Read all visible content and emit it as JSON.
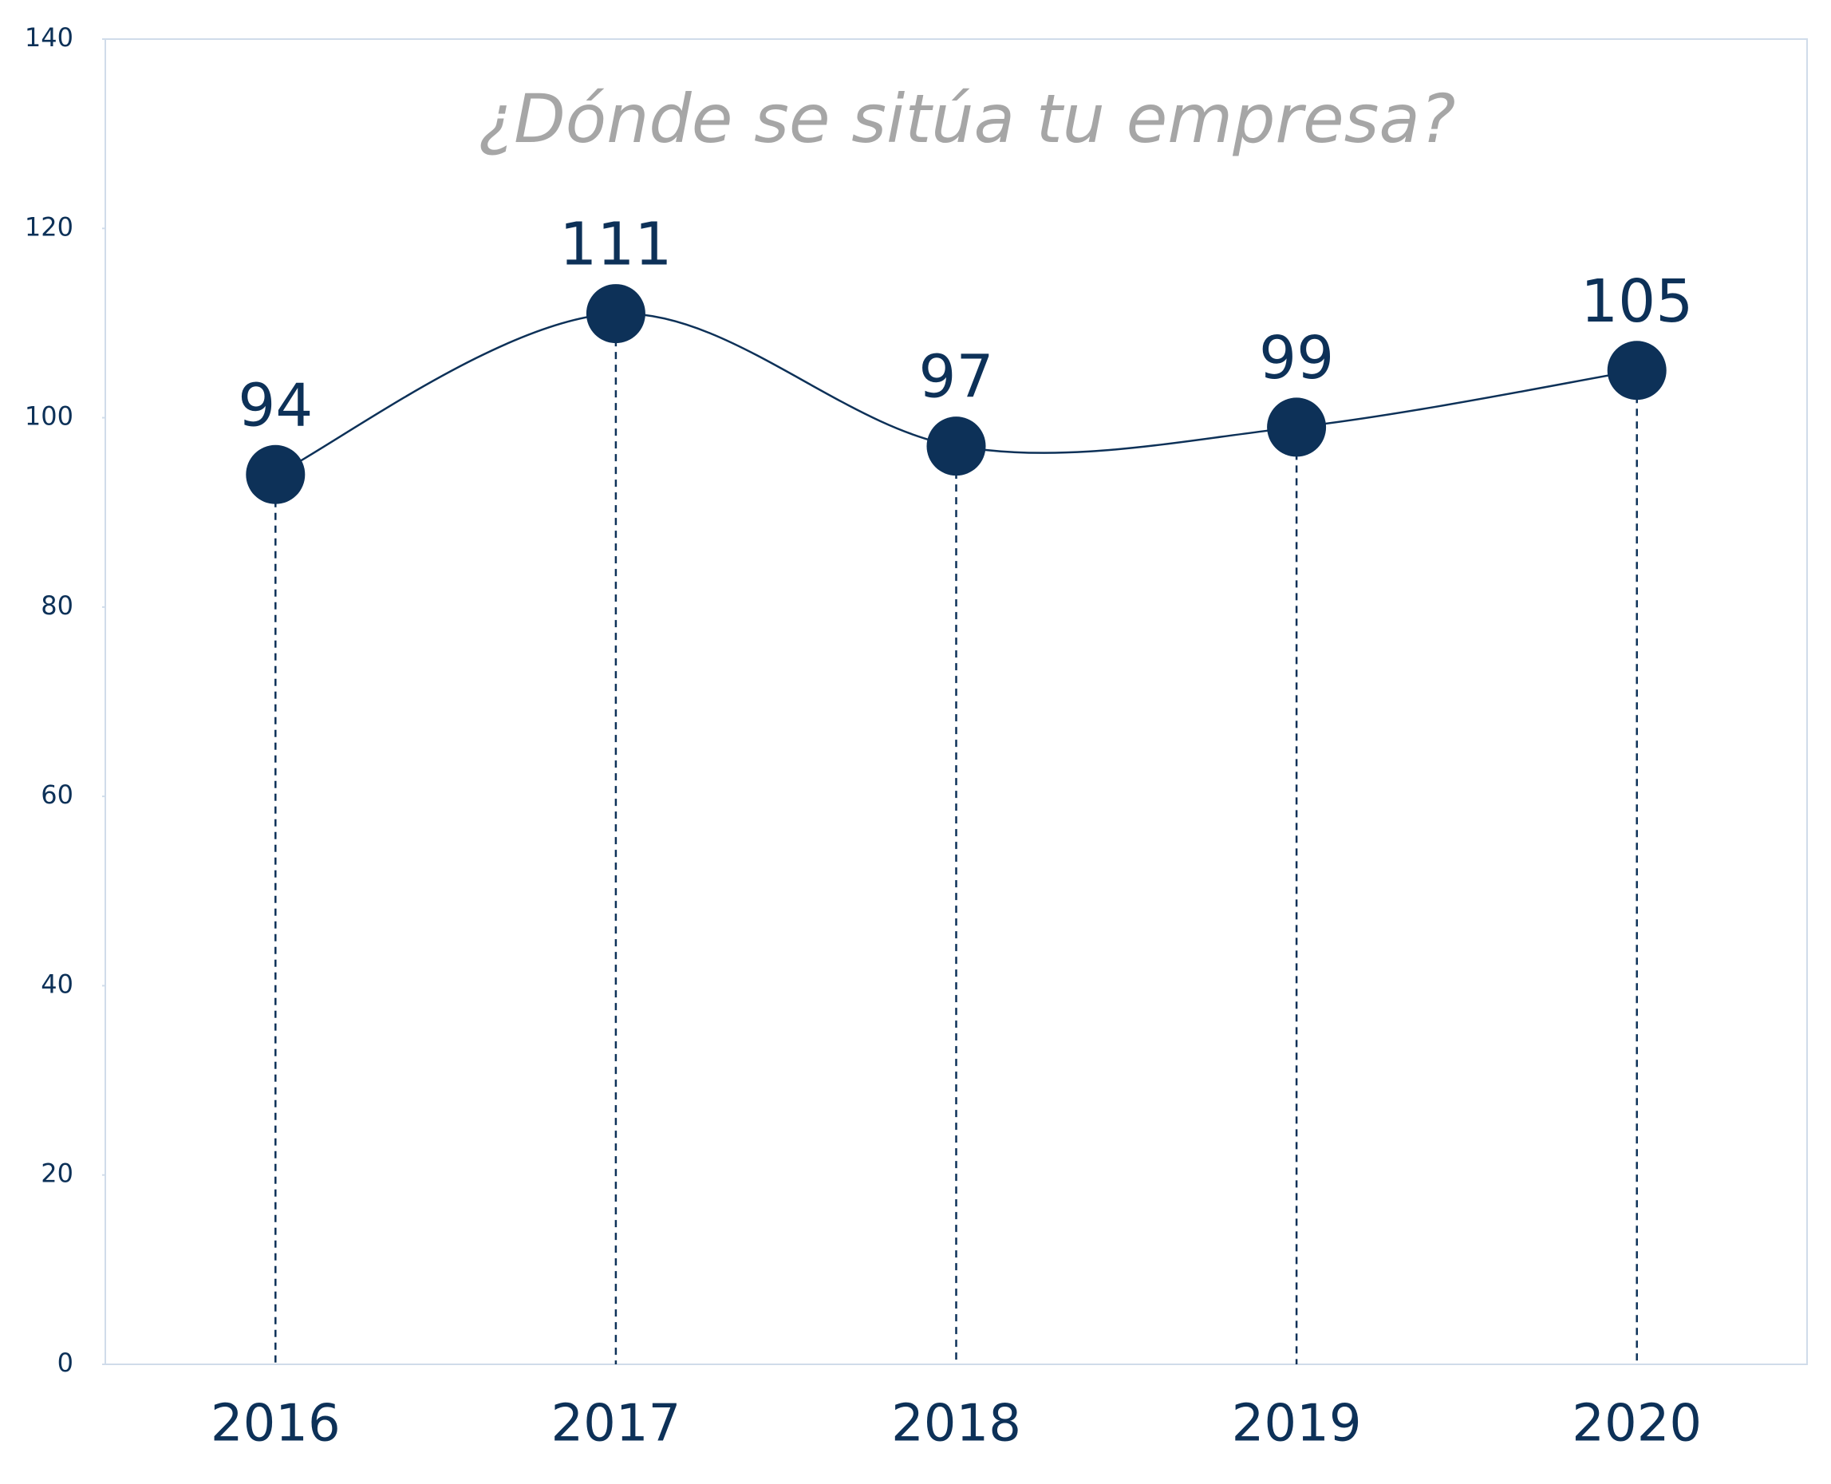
{
  "chart_data": {
    "type": "line",
    "title": "¿Dónde se sitúa tu empresa?",
    "categories": [
      "2016",
      "2017",
      "2018",
      "2019",
      "2020"
    ],
    "values": [
      94,
      111,
      97,
      99,
      105
    ],
    "color": "#0d3158",
    "smooth": true,
    "drop_lines": true,
    "ylim": [
      0,
      140
    ],
    "yticks": [
      0,
      20,
      40,
      60,
      80,
      100,
      120,
      140
    ]
  }
}
